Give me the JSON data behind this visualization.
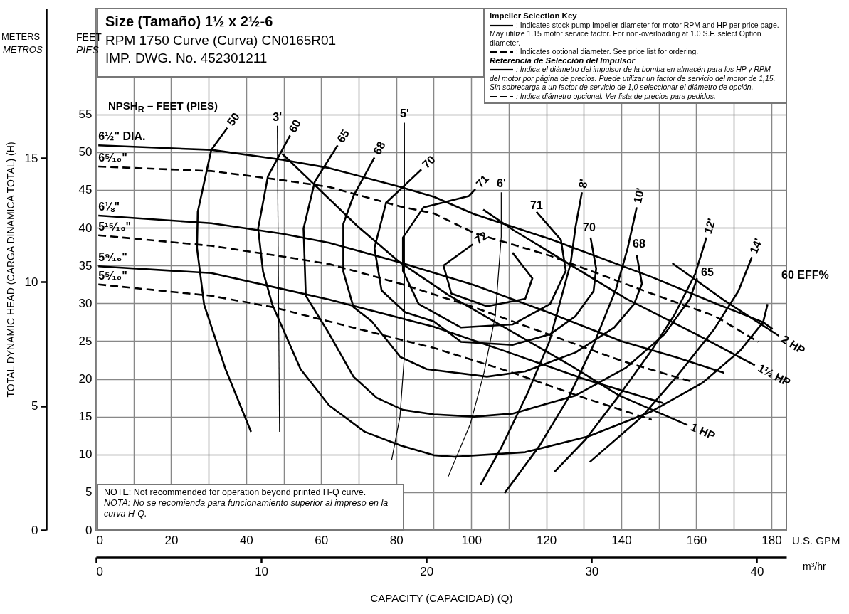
{
  "chart_data": {
    "type": "line",
    "title": "Size (Tamaño) 1½ x 2½-6",
    "subtitle": "RPM 1750 Curve (Curva) CN0165R01",
    "x2label": "CAPACITY (CAPACIDAD) (Q)",
    "y2label": "TOTAL DYNAMIC HEAD (CARGA DINAMICA TOTAL) (H)",
    "xlim": [
      0,
      184
    ],
    "ylim": [
      0,
      69
    ],
    "xticks": [
      0,
      {
        "value": 10,
        "label": null
      },
      20,
      {
        "value": 30,
        "label": null
      },
      40,
      {
        "value": 50,
        "label": null
      },
      60,
      {
        "value": 70,
        "label": null
      },
      80,
      {
        "value": 90,
        "label": null
      },
      100,
      {
        "value": 110,
        "label": null
      },
      120,
      {
        "value": 130,
        "label": null
      },
      140,
      {
        "value": 150,
        "label": null
      },
      160,
      {
        "value": 170,
        "label": null
      },
      180
    ],
    "yticks": [
      0,
      5,
      10,
      15,
      20,
      25,
      30,
      35,
      40,
      45,
      50,
      55
    ],
    "x2lim": [
      0,
      41.79
    ],
    "x2ticks": [
      0,
      10,
      20,
      30,
      40
    ],
    "y2lim": [
      0,
      21.03
    ],
    "y2ticks": [
      0,
      5,
      10,
      15
    ],
    "grid": true,
    "annotations": [
      "IMP. DWG. No. 452301211",
      "Impeller Selection Key",
      ": Indicates stock pump impeller diameter for motor RPM and HP per price page. May utilize 1.15 motor service factor. For non-overloading at 1.0 S.F. select Option diameter.",
      ": Indicates optional diameter. See price list for ordering.",
      "Referencia de Selección del Impulsor",
      ": Indica el diámetro del impulsor de la bomba en almacén para los HP y RPM del motor por página de precios. Puede utilizar un factor de servicio del motor de 1,15. Sin sobrecarga a un factor de servicio de 1,0 seleccionar el diámetro de opción.",
      ": Indica diámetro opcional. Ver lista de precios para pedidos.",
      "NOTE: Not recommended for operation beyond printed H-Q curve.",
      "NOTA: No se recomienda para funcionamiento superior al impreso en la curva H-Q.",
      "NPSH$_{R}$ – FEET (PIES)",
      "FEET",
      "PIES",
      "METERS",
      "METROS",
      "U.S. GPM",
      "m³/hr",
      "71",
      "70",
      "68",
      "65",
      "60 EFF%"
    ],
    "series": [
      {
        "name": "6½\" DIA.",
        "color": "#000000",
        "line_style": "solid",
        "x": [
          0.6,
          30.7,
          49.6,
          62.1,
          81.1,
          90,
          100.8,
          121,
          148,
          165,
          177.8,
          180.3
        ],
        "values": [
          50.9,
          50.3,
          49,
          47.9,
          45.4,
          44.1,
          41.8,
          38.5,
          33.5,
          30,
          27.5,
          26.6
        ]
      },
      {
        "name": "6⁵⁄₁₆\"",
        "color": "#000000",
        "line_style": "dashed",
        "x": [
          0.6,
          30.7,
          49.6,
          62.1,
          81.1,
          90,
          100.8,
          121,
          148,
          165,
          176.5
        ],
        "values": [
          48.1,
          47.5,
          46.3,
          45.4,
          42.8,
          41.9,
          39.3,
          36.3,
          31.3,
          28.3,
          24.9
        ]
      },
      {
        "name": "6⅛\"",
        "color": "#000000",
        "line_style": "solid",
        "x": [
          0.6,
          30.7,
          49.6,
          62.1,
          81.1,
          100.8,
          120,
          140,
          155,
          167.4
        ],
        "values": [
          41.6,
          40.6,
          39.2,
          38,
          35.4,
          32.4,
          28.9,
          25,
          22.8,
          20.8
        ]
      },
      {
        "name": "5¹⁵⁄₁₆\"",
        "color": "#000000",
        "line_style": "dashed",
        "x": [
          0.6,
          30.7,
          49.6,
          62.1,
          81.1,
          100,
          120,
          140,
          159.7
        ],
        "values": [
          39,
          37.6,
          36.2,
          35.2,
          32.6,
          29.6,
          26,
          22.4,
          19.5
        ]
      },
      {
        "name": "5⁹⁄₁₆\"",
        "color": "#000000",
        "line_style": "solid",
        "x": [
          0.6,
          30.7,
          49.6,
          62.1,
          90,
          110,
          130,
          151.1
        ],
        "values": [
          34.9,
          34,
          31.9,
          30.5,
          26.9,
          23.5,
          20,
          16.8
        ]
      },
      {
        "name": "5⁵⁄₁₆\"",
        "color": "#000000",
        "line_style": "dashed",
        "x": [
          0.6,
          30.7,
          47,
          81.1,
          90,
          110,
          130,
          148.1
        ],
        "values": [
          32.5,
          31,
          29.5,
          25.2,
          24.1,
          21,
          17.5,
          14.6
        ]
      },
      {
        "name": "50",
        "color": "#000000",
        "line_style": "solid",
        "x": [
          35,
          30.7,
          27.1,
          26.9,
          28.8,
          34.5,
          41.3
        ],
        "values": [
          53.2,
          50.3,
          42.1,
          37.3,
          29.8,
          21.3,
          13
        ]
      },
      {
        "name": "60",
        "color": "#000000",
        "line_style": "solid",
        "x": [
          51.7,
          45.8,
          43.2,
          44.5,
          47,
          54.5,
          62.1,
          71.6,
          81.1,
          90,
          95.5,
          114.4,
          131.3,
          148.1,
          161.7,
          171.8,
          177.8,
          179
        ],
        "values": [
          52.2,
          46.8,
          39.9,
          34.2,
          29.8,
          21.3,
          16.5,
          13,
          11.2,
          9.9,
          9.7,
          10.3,
          12.4,
          15.7,
          19.5,
          23.8,
          27.5,
          29.9
        ]
      },
      {
        "name": "65",
        "color": "#000000",
        "line_style": "solid",
        "x": [
          64.4,
          58.3,
          55.3,
          55.9,
          62.1,
          68.6,
          74.8,
          81.8,
          90,
          100.8,
          111,
          127.8,
          141.3,
          151.5,
          158.3,
          160.2
        ],
        "values": [
          50.9,
          46.1,
          39.9,
          31,
          26,
          20.3,
          17.5,
          15.9,
          15.3,
          15,
          15.4,
          17.8,
          21.5,
          25.9,
          30.6,
          33.3
        ]
      },
      {
        "name": "68",
        "color": "#000000",
        "line_style": "solid",
        "x": [
          74.2,
          68.6,
          65.9,
          65.9,
          68.6,
          73.5,
          81.1,
          88.1,
          104.2,
          114.4,
          127.8,
          138.1,
          143.4,
          145.5,
          144.1
        ],
        "values": [
          49.3,
          44.2,
          40.5,
          34.2,
          29.5,
          27.6,
          22.9,
          21.3,
          20.3,
          21,
          23.5,
          26.8,
          29.9,
          32.6,
          36.4
        ]
      },
      {
        "name": "70",
        "color": "#000000",
        "line_style": "solid",
        "x": [
          86.7,
          77.3,
          74.2,
          76.1,
          82.4,
          90,
          97.3,
          111,
          121,
          127.8,
          132.6,
          133.3,
          131.8
        ],
        "values": [
          47.7,
          43.3,
          37.3,
          31.7,
          28.8,
          27.6,
          24.9,
          24.5,
          25.9,
          28.3,
          31.6,
          34.6,
          38.7
        ]
      },
      {
        "name": "71",
        "color": "#000000",
        "line_style": "solid",
        "x": [
          101.1,
          99.4,
          87.3,
          81.8,
          81.8,
          86,
          97.3,
          111,
          121,
          125.2,
          123.9,
          117.4
        ],
        "values": [
          45.1,
          44.2,
          42.7,
          38.7,
          34.3,
          29.9,
          26.8,
          27.2,
          29.9,
          34.3,
          38.4,
          42.1
        ]
      },
      {
        "name": "72",
        "color": "#000000",
        "line_style": "solid",
        "x": [
          100.4,
          92.6,
          94.7,
          104.2,
          114.4,
          116.3,
          111
        ],
        "values": [
          37.8,
          35,
          31.3,
          29.6,
          30.6,
          33.3,
          36.7
        ]
      },
      {
        "name": "3'",
        "color": "#000000",
        "line_style": "solid",
        "x": [
          48.3,
          48.9
        ],
        "values": [
          53.5,
          13
        ]
      },
      {
        "name": "5'",
        "color": "#000000",
        "line_style": "solid",
        "x": [
          82.2,
          82.2,
          81,
          78.8
        ],
        "values": [
          53.9,
          23.2,
          15,
          9.3
        ]
      },
      {
        "name": "6'",
        "color": "#000000",
        "line_style": "solid",
        "x": [
          108,
          108,
          106.4,
          103.4,
          99.8,
          93.8
        ],
        "values": [
          44.7,
          38.8,
          28.3,
          20.8,
          14.1,
          7
        ]
      },
      {
        "name": "8'",
        "color": "#000000",
        "line_style": "solid",
        "x": [
          129.5,
          127.8,
          126.5,
          120.8,
          115,
          108.1,
          102.5
        ],
        "values": [
          44.7,
          40.1,
          35.3,
          24.9,
          18.1,
          11,
          6
        ]
      },
      {
        "name": "10'",
        "color": "#000000",
        "line_style": "solid",
        "x": [
          144.1,
          141.7,
          138.6,
          132.6,
          125.8,
          118,
          108.9
        ],
        "values": [
          42.7,
          37.3,
          31.9,
          24.5,
          17.4,
          11,
          4.9
        ]
      },
      {
        "name": "12'",
        "color": "#000000",
        "line_style": "solid",
        "x": [
          162.7,
          159.7,
          154.2,
          148.1,
          139.4,
          130.5,
          122.2
        ],
        "values": [
          38.7,
          33.9,
          28.5,
          23.8,
          17.8,
          12,
          7.7
        ]
      },
      {
        "name": "14'",
        "color": "#000000",
        "line_style": "solid",
        "x": [
          174.8,
          171.2,
          164.8,
          154.9,
          145.5,
          131.6
        ],
        "values": [
          36.1,
          31.6,
          26.6,
          20.4,
          15,
          9
        ]
      },
      {
        "name": "2 HP",
        "color": "#000000",
        "line_style": "solid",
        "x": [
          182,
          168,
          153.6
        ],
        "values": [
          25.7,
          30.2,
          35.3
        ]
      },
      {
        "name": "1½ HP",
        "color": "#000000",
        "line_style": "solid",
        "x": [
          175.6,
          160,
          141.3,
          111.2,
          103.2
        ],
        "values": [
          21.8,
          25.9,
          30.6,
          39.7,
          42.4
        ]
      },
      {
        "name": "1 HP",
        "color": "#000000",
        "line_style": "solid",
        "x": [
          157.6,
          139.4,
          127.1,
          111,
          93.9,
          80.5,
          69.7,
          49.6
        ],
        "values": [
          13.9,
          17.8,
          21.6,
          26.2,
          31.1,
          35.6,
          40.2,
          49.8
        ]
      }
    ]
  }
}
